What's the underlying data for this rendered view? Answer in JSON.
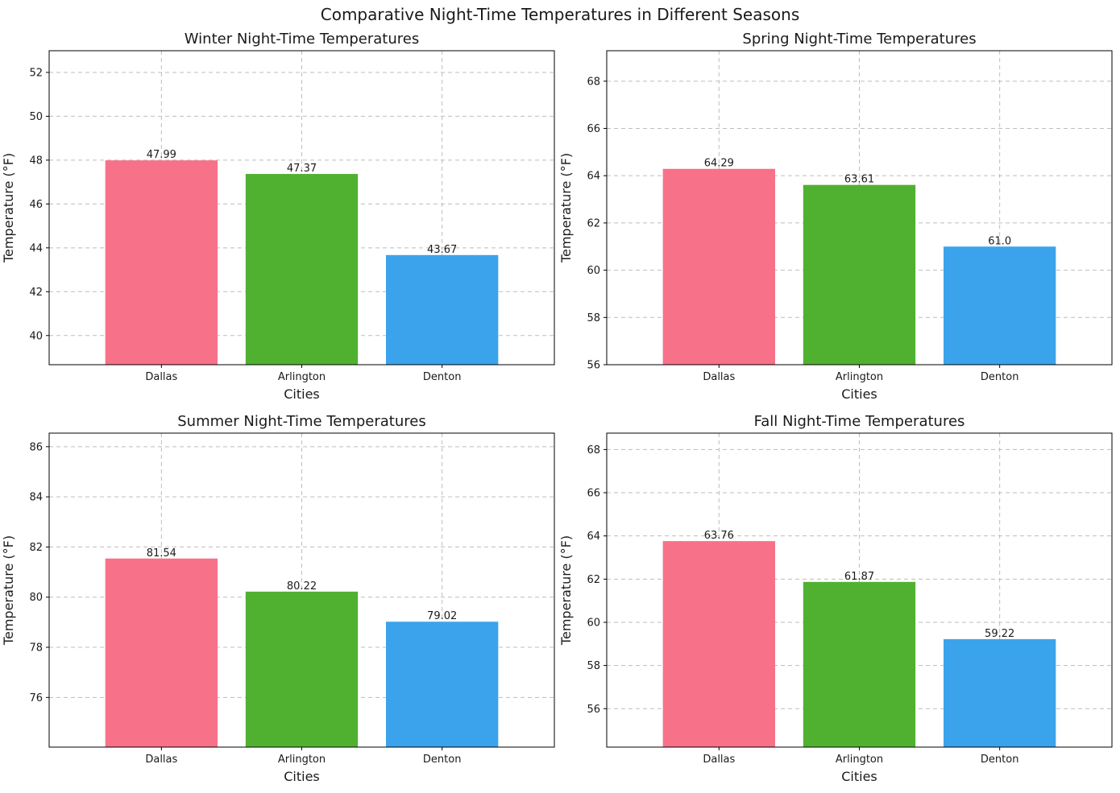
{
  "figure": {
    "suptitle": "Comparative Night-Time Temperatures in Different Seasons"
  },
  "chart_data": [
    {
      "type": "bar",
      "title": "Winter Night-Time Temperatures",
      "xlabel": "Cities",
      "ylabel": "Temperature (°F)",
      "categories": [
        "Dallas",
        "Arlington",
        "Denton"
      ],
      "values": [
        47.99,
        47.37,
        43.67
      ],
      "value_labels": [
        "47.99",
        "47.37",
        "43.67"
      ],
      "colors": [
        "#f77189",
        "#50b131",
        "#3ba3ec"
      ],
      "ylim": [
        38.67,
        52.99
      ],
      "yticks": [
        40,
        42,
        44,
        46,
        48,
        50,
        52
      ],
      "grid": true
    },
    {
      "type": "bar",
      "title": "Spring Night-Time Temperatures",
      "xlabel": "Cities",
      "ylabel": "Temperature (°F)",
      "categories": [
        "Dallas",
        "Arlington",
        "Denton"
      ],
      "values": [
        64.29,
        63.61,
        61.0
      ],
      "value_labels": [
        "64.29",
        "63.61",
        "61.0"
      ],
      "colors": [
        "#f77189",
        "#50b131",
        "#3ba3ec"
      ],
      "ylim": [
        56,
        69.29
      ],
      "yticks": [
        56,
        58,
        60,
        62,
        64,
        66,
        68
      ],
      "grid": true
    },
    {
      "type": "bar",
      "title": "Summer Night-Time Temperatures",
      "xlabel": "Cities",
      "ylabel": "Temperature (°F)",
      "categories": [
        "Dallas",
        "Arlington",
        "Denton"
      ],
      "values": [
        81.54,
        80.22,
        79.02
      ],
      "value_labels": [
        "81.54",
        "80.22",
        "79.02"
      ],
      "colors": [
        "#f77189",
        "#50b131",
        "#3ba3ec"
      ],
      "ylim": [
        74.02,
        86.54
      ],
      "yticks": [
        76,
        78,
        80,
        82,
        84,
        86
      ],
      "grid": true
    },
    {
      "type": "bar",
      "title": "Fall Night-Time Temperatures",
      "xlabel": "Cities",
      "ylabel": "Temperature (°F)",
      "categories": [
        "Dallas",
        "Arlington",
        "Denton"
      ],
      "values": [
        63.76,
        61.87,
        59.22
      ],
      "value_labels": [
        "63.76",
        "61.87",
        "59.22"
      ],
      "colors": [
        "#f77189",
        "#50b131",
        "#3ba3ec"
      ],
      "ylim": [
        54.22,
        68.76
      ],
      "yticks": [
        56,
        58,
        60,
        62,
        64,
        66,
        68
      ],
      "grid": true
    }
  ]
}
